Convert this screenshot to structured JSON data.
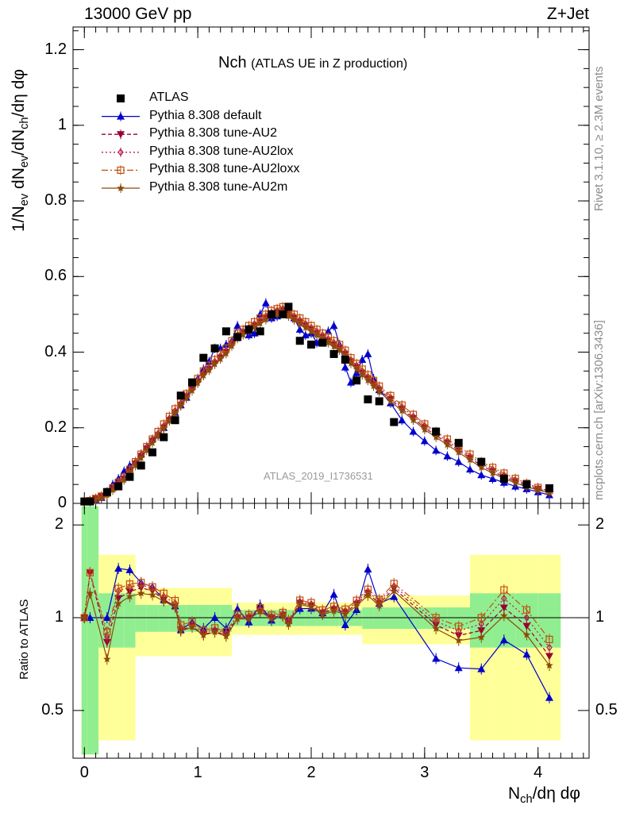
{
  "header": {
    "left": "13000 GeV pp",
    "right": "Z+Jet"
  },
  "plot_title": {
    "main": "Nch",
    "sub": "(ATLAS UE in Z production)"
  },
  "side_text": {
    "rivet": "Rivet 3.1.10, ≥ 2.3M events",
    "mcplots": "mcplots.cern.ch [arXiv:1306.3436]"
  },
  "watermark": "ATLAS_2019_I1736531",
  "axis_labels": {
    "y_top_a": "1/N",
    "y_top_b": "ev",
    "y_top_c": " dN",
    "y_top_d": "ev",
    "y_top_e": "/dN",
    "y_top_f": "ch",
    "y_top_g": "/dη dφ",
    "y_bottom": "Ratio to ATLAS",
    "x_a": "N",
    "x_b": "ch",
    "x_c": "/dη dφ"
  },
  "colors": {
    "atlas": "#000000",
    "default": "#0000cc",
    "au2": "#990033",
    "au2lox": "#b0204a",
    "au2loxx": "#c05010",
    "au2m": "#8b4a0a",
    "band_green": "#90ee90",
    "band_yellow": "#ffff99"
  },
  "chart_data": {
    "type": "line",
    "x": [
      0.0,
      0.05,
      0.1,
      0.15,
      0.2,
      0.25,
      0.3,
      0.35,
      0.4,
      0.45,
      0.5,
      0.55,
      0.6,
      0.65,
      0.7,
      0.75,
      0.8,
      0.85,
      0.9,
      0.95,
      1.0,
      1.05,
      1.1,
      1.15,
      1.2,
      1.25,
      1.3,
      1.35,
      1.4,
      1.45,
      1.5,
      1.55,
      1.6,
      1.65,
      1.7,
      1.75,
      1.8,
      1.85,
      1.9,
      1.95,
      2.0,
      2.05,
      2.1,
      2.15,
      2.2,
      2.25,
      2.3,
      2.35,
      2.4,
      2.45,
      2.5,
      2.55,
      2.6,
      2.7,
      2.8,
      2.9,
      3.0,
      3.1,
      3.2,
      3.3,
      3.4,
      3.5,
      3.6,
      3.7,
      3.8,
      3.9,
      4.0,
      4.1
    ],
    "xlim": [
      -0.1,
      4.45
    ],
    "ylim": [
      0,
      1.26
    ],
    "ratio_ylim": [
      0.35,
      2.35
    ],
    "yticks": [
      "0",
      "0.2",
      "0.4",
      "0.6",
      "0.8",
      "1",
      "1.2"
    ],
    "xticks": [
      "0",
      "1",
      "2",
      "3",
      "4"
    ],
    "ratio_yticks": [
      "0.5",
      "1",
      "2"
    ],
    "legend_position": "top-left",
    "atlas_x": [
      0.0,
      0.05,
      0.2,
      0.3,
      0.4,
      0.5,
      0.6,
      0.7,
      0.8,
      0.85,
      0.95,
      1.05,
      1.15,
      1.25,
      1.35,
      1.45,
      1.55,
      1.65,
      1.75,
      1.8,
      1.9,
      2.0,
      2.1,
      2.2,
      2.3,
      2.4,
      2.5,
      2.6,
      2.73,
      3.1,
      3.3,
      3.5,
      3.7,
      3.9,
      4.1
    ],
    "atlas_y": [
      0.005,
      0.005,
      0.03,
      0.045,
      0.07,
      0.1,
      0.135,
      0.175,
      0.22,
      0.285,
      0.32,
      0.385,
      0.41,
      0.455,
      0.44,
      0.46,
      0.455,
      0.5,
      0.5,
      0.52,
      0.43,
      0.42,
      0.425,
      0.395,
      0.38,
      0.325,
      0.275,
      0.27,
      0.215,
      0.19,
      0.16,
      0.11,
      0.065,
      0.05,
      0.04
    ],
    "series": [
      {
        "name": "ATLAS",
        "marker": "square",
        "colorKey": "atlas",
        "dash": "none"
      },
      {
        "name": "Pythia 8.308 default",
        "marker": "triangle-up",
        "colorKey": "default",
        "dash": "none",
        "y": [
          0.005,
          0.005,
          0.01,
          0.015,
          0.03,
          0.05,
          0.065,
          0.085,
          0.1,
          0.11,
          0.13,
          0.15,
          0.17,
          0.18,
          0.2,
          0.22,
          0.24,
          0.26,
          0.28,
          0.31,
          0.33,
          0.355,
          0.375,
          0.41,
          0.41,
          0.42,
          0.43,
          0.47,
          0.455,
          0.445,
          0.45,
          0.5,
          0.53,
          0.49,
          0.495,
          0.51,
          0.51,
          0.49,
          0.46,
          0.445,
          0.45,
          0.425,
          0.44,
          0.455,
          0.47,
          0.42,
          0.36,
          0.32,
          0.345,
          0.38,
          0.395,
          0.33,
          0.3,
          0.265,
          0.22,
          0.19,
          0.165,
          0.14,
          0.125,
          0.11,
          0.09,
          0.075,
          0.065,
          0.055,
          0.045,
          0.038,
          0.03,
          0.022
        ]
      },
      {
        "name": "Pythia 8.308 tune-AU2",
        "marker": "triangle-down",
        "colorKey": "au2",
        "dash": "5,3",
        "y": [
          0.005,
          0.007,
          0.012,
          0.018,
          0.025,
          0.038,
          0.052,
          0.065,
          0.085,
          0.105,
          0.125,
          0.145,
          0.165,
          0.18,
          0.2,
          0.22,
          0.24,
          0.26,
          0.28,
          0.3,
          0.32,
          0.34,
          0.355,
          0.37,
          0.385,
          0.4,
          0.42,
          0.44,
          0.45,
          0.46,
          0.47,
          0.48,
          0.49,
          0.5,
          0.505,
          0.51,
          0.5,
          0.49,
          0.48,
          0.47,
          0.46,
          0.45,
          0.44,
          0.43,
          0.42,
          0.41,
          0.395,
          0.375,
          0.36,
          0.345,
          0.33,
          0.315,
          0.3,
          0.275,
          0.25,
          0.225,
          0.2,
          0.18,
          0.16,
          0.14,
          0.12,
          0.1,
          0.085,
          0.07,
          0.058,
          0.047,
          0.038,
          0.03
        ]
      },
      {
        "name": "Pythia 8.308 tune-AU2lox",
        "marker": "diamond",
        "colorKey": "au2lox",
        "dash": "2,3",
        "y": [
          0.005,
          0.007,
          0.012,
          0.018,
          0.026,
          0.04,
          0.055,
          0.068,
          0.088,
          0.108,
          0.128,
          0.148,
          0.168,
          0.185,
          0.205,
          0.225,
          0.245,
          0.265,
          0.285,
          0.305,
          0.325,
          0.345,
          0.36,
          0.375,
          0.39,
          0.405,
          0.425,
          0.445,
          0.455,
          0.465,
          0.475,
          0.485,
          0.495,
          0.505,
          0.51,
          0.515,
          0.505,
          0.495,
          0.485,
          0.475,
          0.465,
          0.455,
          0.445,
          0.435,
          0.425,
          0.415,
          0.4,
          0.38,
          0.365,
          0.35,
          0.335,
          0.32,
          0.305,
          0.28,
          0.255,
          0.23,
          0.205,
          0.185,
          0.165,
          0.145,
          0.125,
          0.105,
          0.09,
          0.075,
          0.062,
          0.05,
          0.04,
          0.032
        ]
      },
      {
        "name": "Pythia 8.308 tune-AU2loxx",
        "marker": "square-open",
        "colorKey": "au2loxx",
        "dash": "8,3,2,3",
        "y": [
          0.005,
          0.007,
          0.013,
          0.019,
          0.027,
          0.041,
          0.056,
          0.07,
          0.09,
          0.11,
          0.13,
          0.15,
          0.17,
          0.19,
          0.21,
          0.23,
          0.25,
          0.27,
          0.29,
          0.31,
          0.33,
          0.35,
          0.365,
          0.38,
          0.395,
          0.41,
          0.43,
          0.45,
          0.46,
          0.47,
          0.48,
          0.49,
          0.5,
          0.51,
          0.515,
          0.52,
          0.51,
          0.5,
          0.49,
          0.48,
          0.47,
          0.46,
          0.45,
          0.44,
          0.43,
          0.42,
          0.405,
          0.385,
          0.37,
          0.355,
          0.34,
          0.325,
          0.31,
          0.285,
          0.26,
          0.235,
          0.21,
          0.19,
          0.17,
          0.15,
          0.13,
          0.11,
          0.095,
          0.08,
          0.066,
          0.053,
          0.042,
          0.034
        ]
      },
      {
        "name": "Pythia 8.308 tune-AU2m",
        "marker": "star",
        "colorKey": "au2m",
        "dash": "none",
        "y": [
          0.005,
          0.006,
          0.01,
          0.014,
          0.022,
          0.035,
          0.05,
          0.062,
          0.082,
          0.1,
          0.12,
          0.14,
          0.16,
          0.178,
          0.198,
          0.218,
          0.238,
          0.258,
          0.278,
          0.298,
          0.318,
          0.338,
          0.352,
          0.368,
          0.382,
          0.396,
          0.416,
          0.436,
          0.446,
          0.456,
          0.466,
          0.476,
          0.486,
          0.496,
          0.5,
          0.505,
          0.495,
          0.485,
          0.475,
          0.465,
          0.455,
          0.445,
          0.435,
          0.425,
          0.415,
          0.405,
          0.39,
          0.37,
          0.355,
          0.34,
          0.325,
          0.31,
          0.295,
          0.27,
          0.245,
          0.22,
          0.195,
          0.175,
          0.155,
          0.135,
          0.115,
          0.095,
          0.08,
          0.066,
          0.054,
          0.044,
          0.035,
          0.028
        ]
      }
    ]
  }
}
